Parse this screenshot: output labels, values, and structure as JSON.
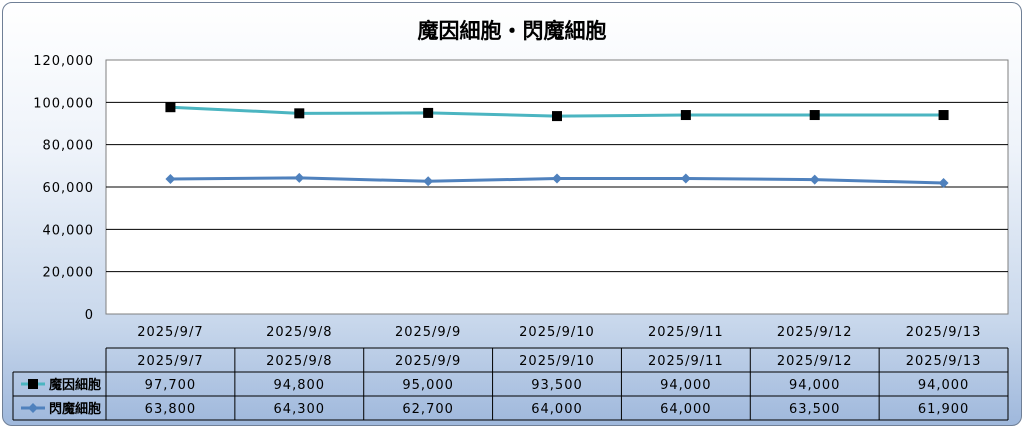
{
  "chart_data": {
    "type": "line",
    "title": "魔因細胞・閃魔細胞",
    "categories": [
      "2025/9/7",
      "2025/9/8",
      "2025/9/9",
      "2025/9/10",
      "2025/9/11",
      "2025/9/12",
      "2025/9/13"
    ],
    "ylim": [
      0,
      120000
    ],
    "yticks": [
      "0",
      "20,000",
      "40,000",
      "60,000",
      "80,000",
      "100,000",
      "120,000"
    ],
    "grid": true,
    "legend": "data-table",
    "series": [
      {
        "name": "魔因細胞",
        "color": "#4bb5c1",
        "marker": "square",
        "values": [
          97700,
          94800,
          95000,
          93500,
          94000,
          94000,
          94000
        ],
        "labels": [
          "97,700",
          "94,800",
          "95,000",
          "93,500",
          "94,000",
          "94,000",
          "94,000"
        ]
      },
      {
        "name": "閃魔細胞",
        "color": "#4f81bd",
        "marker": "diamond",
        "values": [
          63800,
          64300,
          62700,
          64000,
          64000,
          63500,
          61900
        ],
        "labels": [
          "63,800",
          "64,300",
          "62,700",
          "64,000",
          "64,000",
          "63,500",
          "61,900"
        ]
      }
    ]
  }
}
